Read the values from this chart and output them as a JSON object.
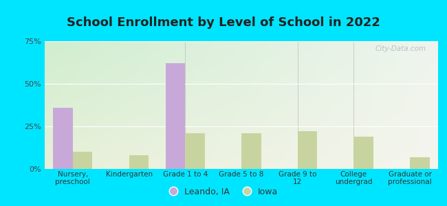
{
  "title": "School Enrollment by Level of School in 2022",
  "categories": [
    "Nursery,\npreschool",
    "Kindergarten",
    "Grade 1 to 4",
    "Grade 5 to 8",
    "Grade 9 to\n12",
    "College\nundergrad",
    "Graduate or\nprofessional"
  ],
  "leando_values": [
    36.0,
    0.0,
    62.0,
    0.0,
    0.0,
    0.0,
    0.0
  ],
  "iowa_values": [
    10.0,
    8.0,
    21.0,
    21.0,
    22.0,
    19.0,
    7.0
  ],
  "leando_color": "#c8a8d8",
  "iowa_color": "#c8d4a0",
  "ylim": [
    0,
    75
  ],
  "yticks": [
    0,
    25,
    50,
    75
  ],
  "ytick_labels": [
    "0%",
    "25%",
    "50%",
    "75%"
  ],
  "legend_leando": "Leando, IA",
  "legend_iowa": "Iowa",
  "bg_outer": "#00e5ff",
  "title_fontsize": 13,
  "bar_width": 0.35,
  "watermark": "City-Data.com"
}
